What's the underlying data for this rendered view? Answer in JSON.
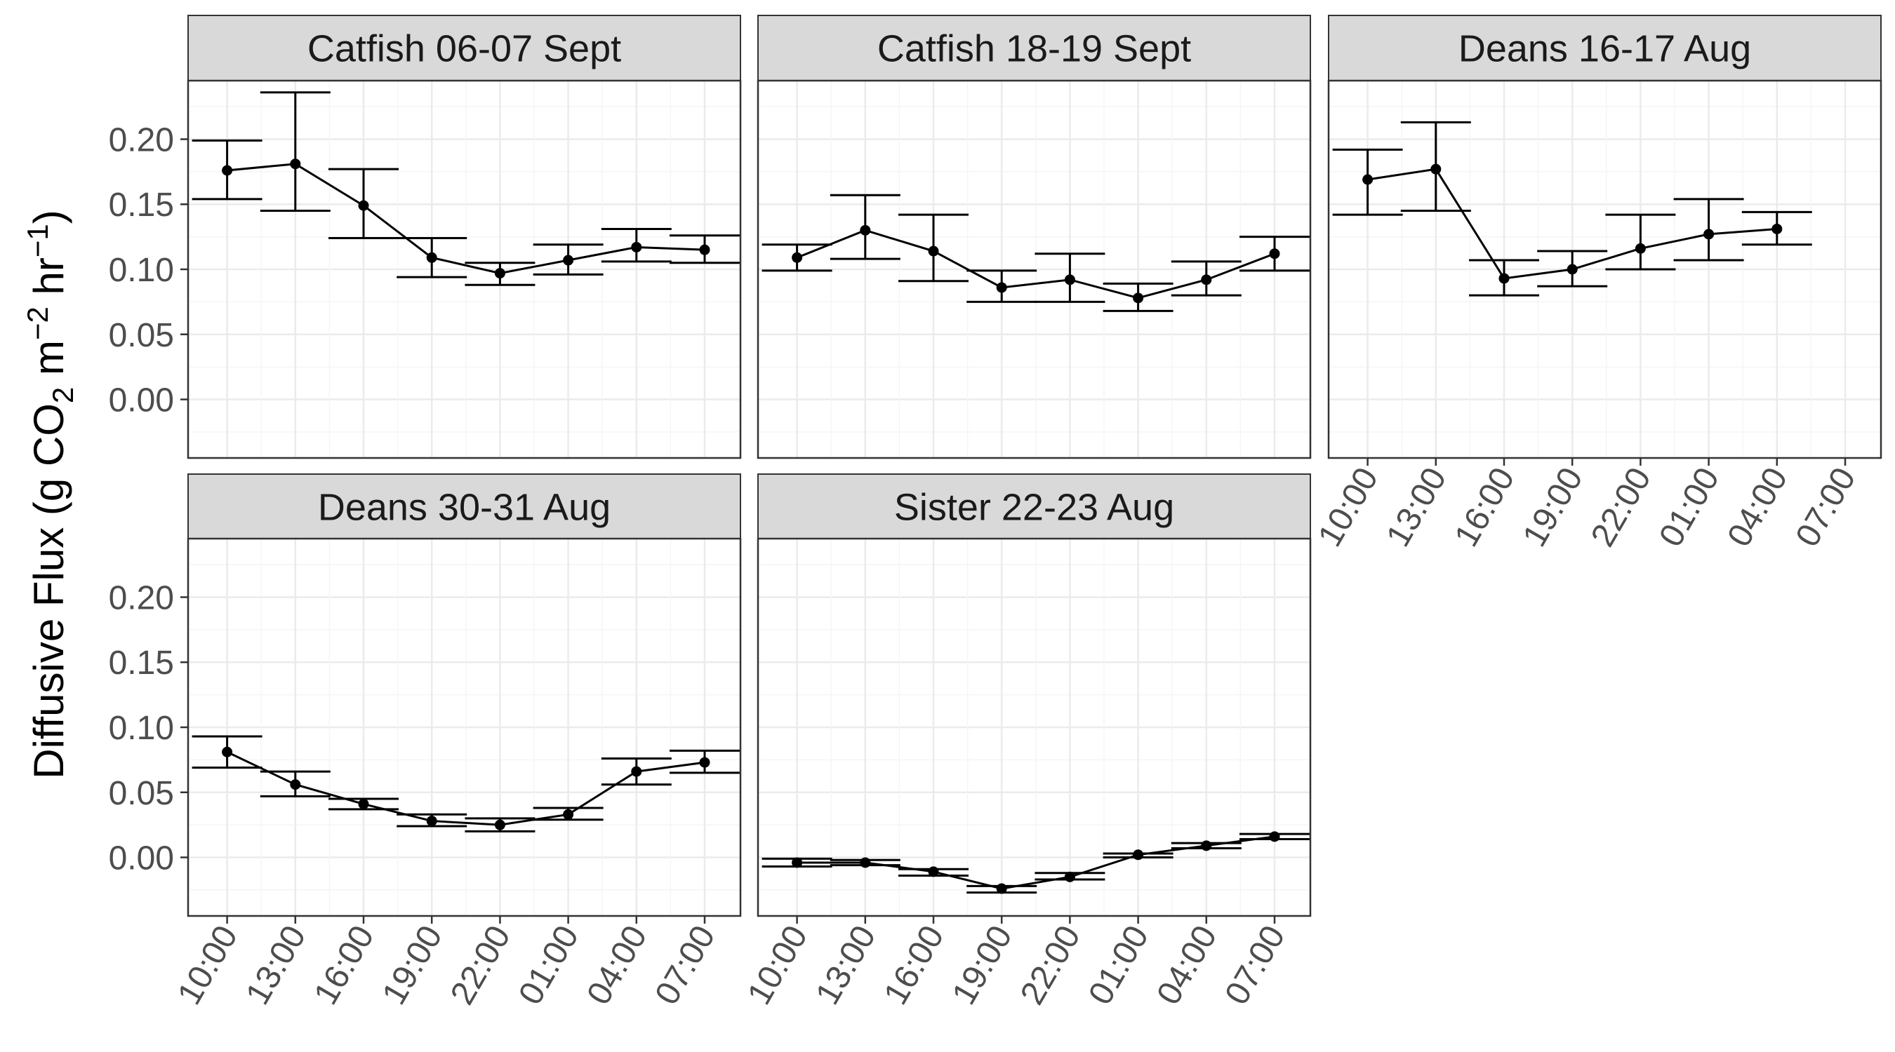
{
  "chart_data": {
    "type": "line",
    "layout": "faceted line chart with error bars, 3 columns x 2 rows",
    "ylabel": {
      "prefix": "Diffusive Flux (g CO",
      "sub": "2",
      "mid1": " m",
      "sup1": "−2",
      "mid2": " hr",
      "sup2": "−1",
      "suffix": ")"
    },
    "xlabel": "",
    "x_categories": [
      "10:00",
      "13:00",
      "16:00",
      "19:00",
      "22:00",
      "01:00",
      "04:00",
      "07:00"
    ],
    "y_ticks": [
      "0.00",
      "0.05",
      "0.10",
      "0.15",
      "0.20"
    ],
    "y_tick_values": [
      0,
      0.05,
      0.1,
      0.15,
      0.2
    ],
    "ylim": [
      -0.045,
      0.245
    ],
    "grid": true,
    "colors": {
      "strip_fill": "#d9d9d9",
      "panel_border": "#333333",
      "grid_major": "#ebebeb",
      "grid_minor": "#f5f5f5",
      "data": "#000000"
    },
    "facets": [
      {
        "title": "Catfish 06-07 Sept",
        "points": [
          {
            "x": "10:00",
            "y": 0.176,
            "ymin": 0.154,
            "ymax": 0.199
          },
          {
            "x": "13:00",
            "y": 0.181,
            "ymin": 0.145,
            "ymax": 0.236
          },
          {
            "x": "16:00",
            "y": 0.149,
            "ymin": 0.124,
            "ymax": 0.177
          },
          {
            "x": "19:00",
            "y": 0.109,
            "ymin": 0.094,
            "ymax": 0.124
          },
          {
            "x": "22:00",
            "y": 0.097,
            "ymin": 0.088,
            "ymax": 0.105
          },
          {
            "x": "01:00",
            "y": 0.107,
            "ymin": 0.096,
            "ymax": 0.119
          },
          {
            "x": "04:00",
            "y": 0.117,
            "ymin": 0.106,
            "ymax": 0.131
          },
          {
            "x": "07:00",
            "y": 0.115,
            "ymin": 0.105,
            "ymax": 0.126
          }
        ]
      },
      {
        "title": "Catfish 18-19 Sept",
        "points": [
          {
            "x": "10:00",
            "y": 0.109,
            "ymin": 0.099,
            "ymax": 0.119
          },
          {
            "x": "13:00",
            "y": 0.13,
            "ymin": 0.108,
            "ymax": 0.157
          },
          {
            "x": "16:00",
            "y": 0.114,
            "ymin": 0.091,
            "ymax": 0.142
          },
          {
            "x": "19:00",
            "y": 0.086,
            "ymin": 0.075,
            "ymax": 0.099
          },
          {
            "x": "22:00",
            "y": 0.092,
            "ymin": 0.075,
            "ymax": 0.112
          },
          {
            "x": "01:00",
            "y": 0.078,
            "ymin": 0.068,
            "ymax": 0.089
          },
          {
            "x": "04:00",
            "y": 0.092,
            "ymin": 0.08,
            "ymax": 0.106
          },
          {
            "x": "07:00",
            "y": 0.112,
            "ymin": 0.099,
            "ymax": 0.125
          }
        ]
      },
      {
        "title": "Deans 16-17 Aug",
        "points": [
          {
            "x": "10:00",
            "y": 0.169,
            "ymin": 0.142,
            "ymax": 0.192
          },
          {
            "x": "13:00",
            "y": 0.177,
            "ymin": 0.145,
            "ymax": 0.213
          },
          {
            "x": "16:00",
            "y": 0.093,
            "ymin": 0.08,
            "ymax": 0.107
          },
          {
            "x": "19:00",
            "y": 0.1,
            "ymin": 0.087,
            "ymax": 0.114
          },
          {
            "x": "22:00",
            "y": 0.116,
            "ymin": 0.1,
            "ymax": 0.142
          },
          {
            "x": "01:00",
            "y": 0.127,
            "ymin": 0.107,
            "ymax": 0.154
          },
          {
            "x": "04:00",
            "y": 0.131,
            "ymin": 0.119,
            "ymax": 0.144
          }
        ]
      },
      {
        "title": "Deans 30-31 Aug",
        "points": [
          {
            "x": "10:00",
            "y": 0.081,
            "ymin": 0.069,
            "ymax": 0.093
          },
          {
            "x": "13:00",
            "y": 0.056,
            "ymin": 0.047,
            "ymax": 0.066
          },
          {
            "x": "16:00",
            "y": 0.041,
            "ymin": 0.037,
            "ymax": 0.045
          },
          {
            "x": "19:00",
            "y": 0.028,
            "ymin": 0.024,
            "ymax": 0.033
          },
          {
            "x": "22:00",
            "y": 0.025,
            "ymin": 0.02,
            "ymax": 0.03
          },
          {
            "x": "01:00",
            "y": 0.033,
            "ymin": 0.029,
            "ymax": 0.038
          },
          {
            "x": "04:00",
            "y": 0.066,
            "ymin": 0.056,
            "ymax": 0.076
          },
          {
            "x": "07:00",
            "y": 0.073,
            "ymin": 0.065,
            "ymax": 0.082
          }
        ]
      },
      {
        "title": "Sister 22-23 Aug",
        "points": [
          {
            "x": "10:00",
            "y": -0.004,
            "ymin": -0.007,
            "ymax": -0.001
          },
          {
            "x": "13:00",
            "y": -0.004,
            "ymin": -0.006,
            "ymax": -0.002
          },
          {
            "x": "16:00",
            "y": -0.011,
            "ymin": -0.014,
            "ymax": -0.009
          },
          {
            "x": "19:00",
            "y": -0.024,
            "ymin": -0.027,
            "ymax": -0.022
          },
          {
            "x": "22:00",
            "y": -0.015,
            "ymin": -0.017,
            "ymax": -0.012
          },
          {
            "x": "01:00",
            "y": 0.002,
            "ymin": 0.0,
            "ymax": 0.003
          },
          {
            "x": "04:00",
            "y": 0.009,
            "ymin": 0.007,
            "ymax": 0.011
          },
          {
            "x": "07:00",
            "y": 0.016,
            "ymin": 0.014,
            "ymax": 0.018
          }
        ]
      }
    ]
  }
}
